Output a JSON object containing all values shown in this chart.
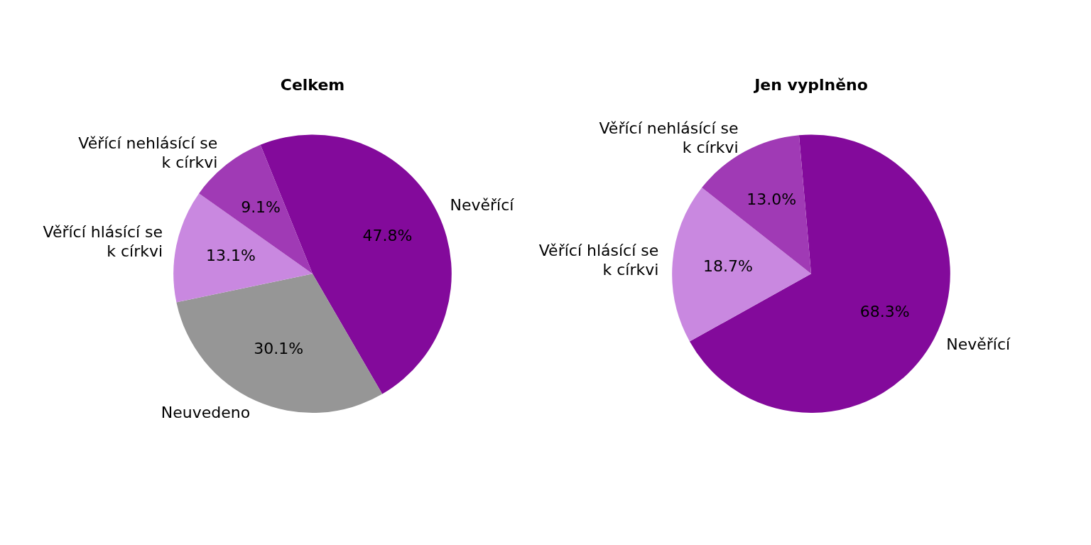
{
  "chart_data": [
    {
      "type": "pie",
      "title": "Celkem",
      "categories": [
        "Nevěřící",
        "Neuvedeno",
        "Věřící hlásící se\nk církvi",
        "Věřící nehlásící se\nk církvi"
      ],
      "values": [
        47.8,
        30.1,
        13.1,
        9.1
      ],
      "colors": [
        "#830a9b",
        "#969696",
        "#c988e0",
        "#a03ab5"
      ],
      "value_labels": [
        "47.8%",
        "30.1%",
        "13.1%",
        "9.1%"
      ]
    },
    {
      "type": "pie",
      "title": "Jen vyplněno",
      "categories": [
        "Nevěřící",
        "Věřící hlásící se\nk církvi",
        "Věřící nehlásící se\nk církvi"
      ],
      "values": [
        68.3,
        18.7,
        13.0
      ],
      "colors": [
        "#830a9b",
        "#c988e0",
        "#a03ab5"
      ],
      "value_labels": [
        "68.3%",
        "18.7%",
        "13.0%"
      ]
    }
  ]
}
